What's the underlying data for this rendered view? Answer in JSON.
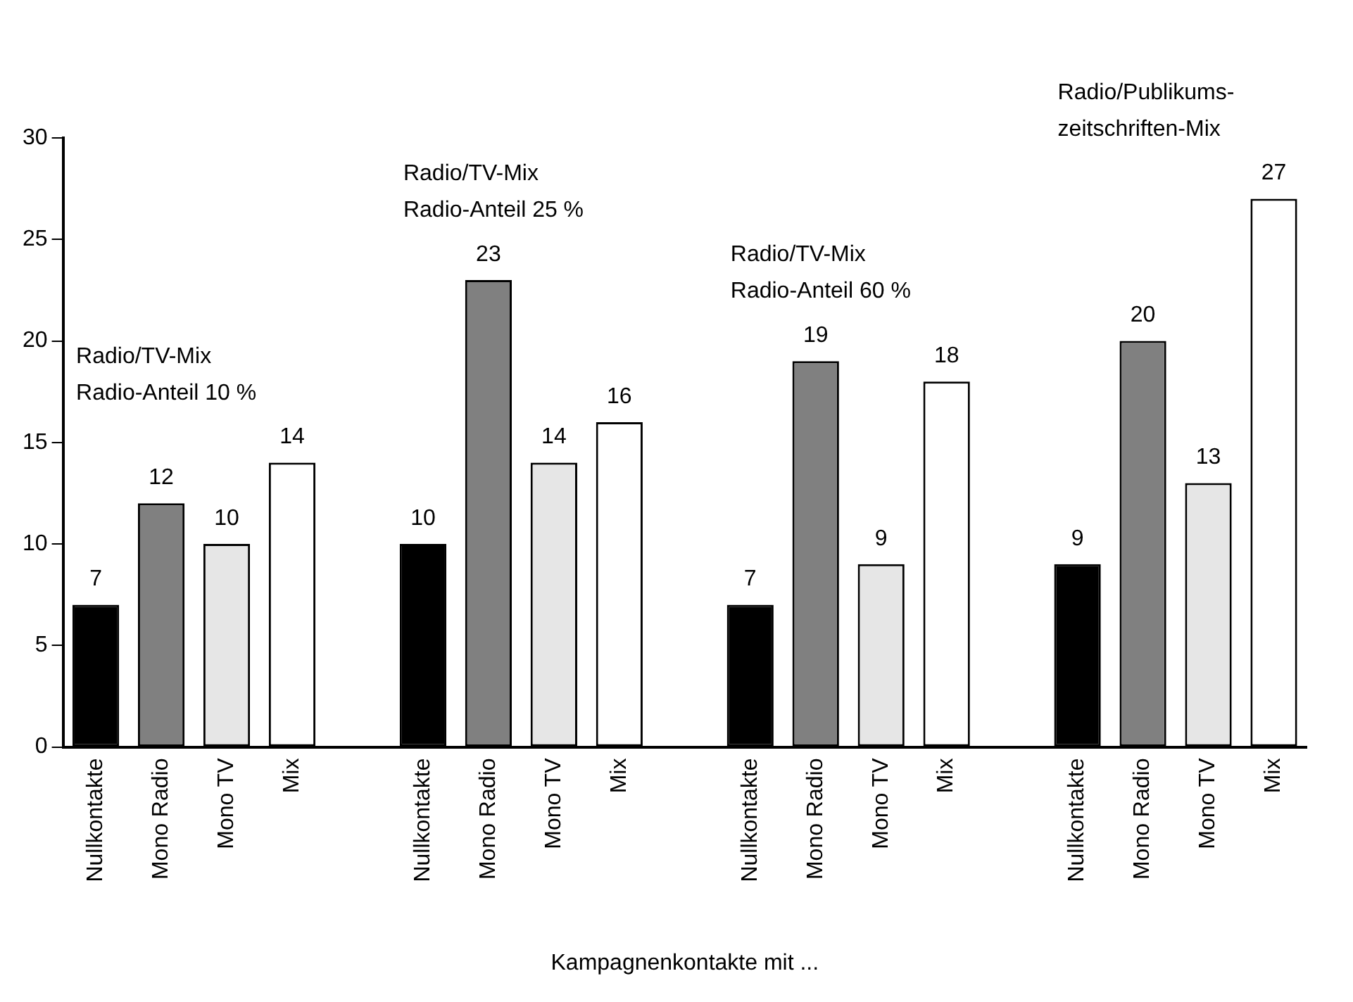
{
  "chart_data": {
    "type": "bar",
    "xlabel": "Kampagnenkontakte mit ...",
    "categories": [
      "Nullkontakte",
      "Mono Radio",
      "Mono TV",
      "Mix",
      null,
      "Nullkontakte",
      "Mono Radio",
      "Mono TV",
      "Mix",
      null,
      "Nullkontakte",
      "Mono Radio",
      "Mono TV",
      "Mix",
      null,
      "Nullkontakte",
      "Mono Radio",
      "Mono TV",
      "Mix"
    ],
    "series": [
      {
        "color": "#000000",
        "values": [
          7,
          null,
          null,
          null,
          null,
          10,
          null,
          null,
          null,
          null,
          7,
          null,
          null,
          null,
          null,
          9,
          null,
          null,
          null
        ]
      },
      {
        "color": "#808080",
        "values": [
          null,
          12,
          null,
          null,
          null,
          null,
          23,
          null,
          null,
          null,
          null,
          19,
          null,
          null,
          null,
          null,
          20,
          null,
          null
        ]
      },
      {
        "color": "#e6e6e6",
        "values": [
          null,
          null,
          10,
          null,
          null,
          null,
          null,
          14,
          null,
          null,
          null,
          null,
          9,
          null,
          null,
          null,
          null,
          13,
          null
        ]
      },
      {
        "color": "#ffffff",
        "values": [
          null,
          null,
          null,
          14,
          null,
          null,
          null,
          null,
          16,
          null,
          null,
          null,
          null,
          18,
          null,
          null,
          null,
          null,
          27
        ]
      }
    ],
    "annotations": [
      "Radio/TV-Mix\nRadio-Anteil 10 %",
      "Radio/TV-Mix\nRadio-Anteil 25 %",
      "Radio/TV-Mix\nRadio-Anteil 60 %",
      "Radio/Publikums-\nzeitschriften-Mix"
    ],
    "data_labels": true,
    "ylim": [
      0,
      30
    ],
    "yticks": [
      0,
      5,
      10,
      15,
      20,
      25,
      30
    ],
    "grid": false,
    "legend": false
  }
}
